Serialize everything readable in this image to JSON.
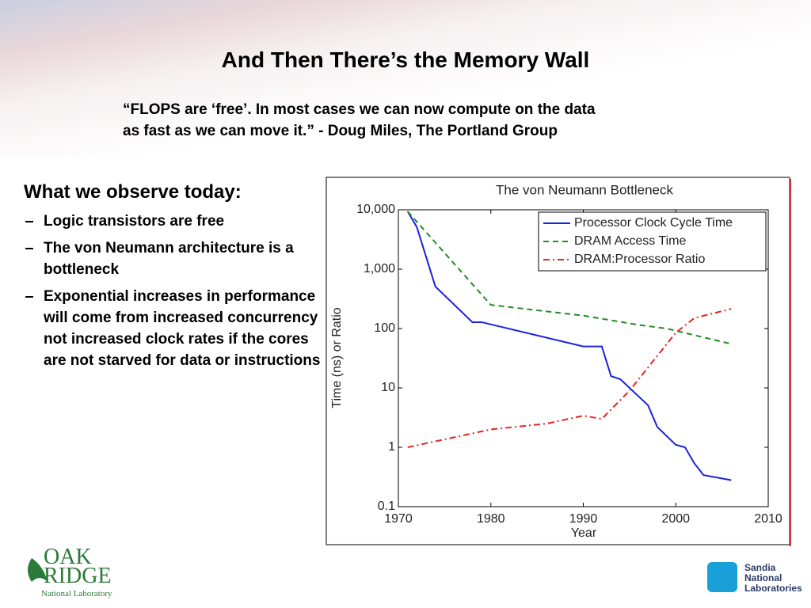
{
  "slide": {
    "title": "And Then There’s the Memory Wall",
    "quote": [
      "“FLOPS are ‘free’.  In most cases we can now compute on the data",
      "as fast as we can move it.” - Doug Miles, The Portland Group"
    ],
    "heading": "What we observe today:",
    "bullets": [
      "Logic transistors are free",
      "The von Neumann architecture is a bottleneck",
      "Exponential increases in performance will come from increased concurrency not increased clock rates if the cores are not starved for data or instructions"
    ],
    "logo_left": [
      "OAK",
      "RIDGE",
      "National Laboratory"
    ],
    "logo_right": [
      "Sandia",
      "National",
      "Laboratories"
    ]
  },
  "chart_data": {
    "type": "line",
    "title": "The von Neumann Bottleneck",
    "xlabel": "Year",
    "ylabel": "Time (ns) or Ratio",
    "xlim": [
      1970,
      2010
    ],
    "xticks": [
      1970,
      1980,
      1990,
      2000,
      2010
    ],
    "ylim": [
      0.1,
      10000
    ],
    "yscale": "log",
    "yticks": [
      0.1,
      1,
      10,
      100,
      {
        "value": 1000,
        "label": "1,000"
      },
      {
        "value": 10000,
        "label": "10,000"
      }
    ],
    "legend": "upper right",
    "series": [
      {
        "name": "Processor Clock Cycle Time",
        "color": "#1a22e0",
        "linestyle": "solid",
        "x": [
          1971,
          1972,
          1974,
          1978,
          1979,
          1990,
          1992,
          1993,
          1994,
          1997,
          1998,
          2000,
          2001,
          2002,
          2003,
          2006
        ],
        "values": [
          9400,
          5100,
          510,
          128,
          128,
          50,
          50,
          15.8,
          14,
          5.1,
          2.2,
          1.1,
          1.0,
          0.54,
          0.34,
          0.28
        ]
      },
      {
        "name": "DRAM Access Time",
        "color": "#228b22",
        "linestyle": "dashed",
        "x": [
          1971,
          1980,
          1990,
          1996,
          1999,
          2006
        ],
        "values": [
          9400,
          250,
          165,
          115,
          100,
          55
        ]
      },
      {
        "name": "DRAM:Processor Ratio",
        "color": "#e8231e",
        "linestyle": "dashdot",
        "x": [
          1971,
          1980,
          1986,
          1990,
          1992,
          1995,
          2000,
          2002,
          2006
        ],
        "values": [
          1,
          2.0,
          2.5,
          3.4,
          3.0,
          9,
          85,
          150,
          215
        ]
      }
    ]
  }
}
